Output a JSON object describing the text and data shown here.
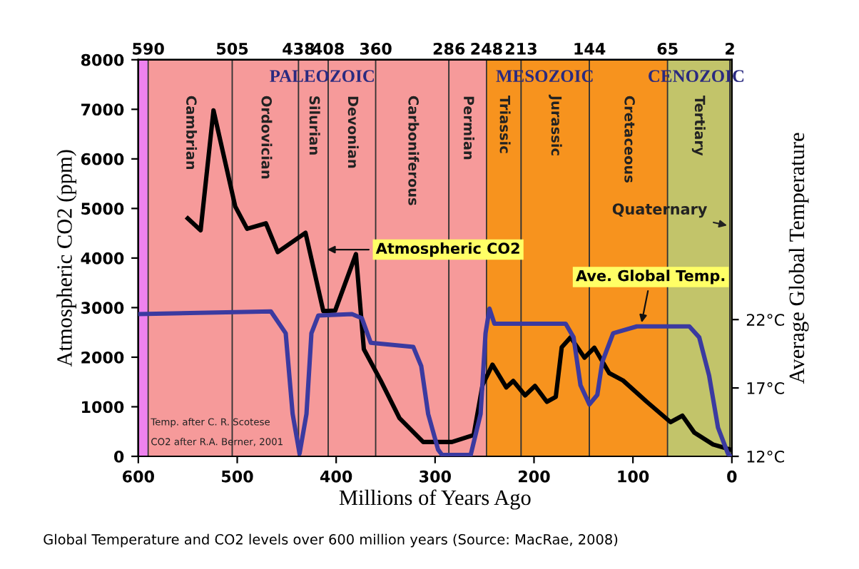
{
  "chart_data": {
    "type": "line",
    "xlabel": "Millions of Years Ago",
    "ylabel": "Atmospheric CO2 (ppm)",
    "y2label": "Average Global Temperature",
    "xlim": [
      600,
      0
    ],
    "xticks": [
      600,
      500,
      400,
      300,
      200,
      100,
      0
    ],
    "x2lim": [
      600,
      0
    ],
    "x2ticks": [
      590,
      505,
      438,
      408,
      360,
      286,
      248,
      213,
      144,
      65,
      2
    ],
    "ylim": [
      0,
      8000
    ],
    "yticks": [
      0,
      1000,
      2000,
      3000,
      4000,
      5000,
      6000,
      7000,
      8000
    ],
    "y2lim": [
      12,
      41
    ],
    "y2ticks": [
      {
        "value": 12,
        "label": "12°C"
      },
      {
        "value": 17,
        "label": "17°C"
      },
      {
        "value": 22,
        "label": "22°C"
      }
    ],
    "grid": false,
    "marker": "none",
    "line_style": "solid",
    "series": [
      {
        "color": "#000000",
        "x": [
          550,
          537,
          524,
          502,
          490,
          471,
          459,
          431,
          413,
          401,
          380,
          372,
          355,
          336,
          312,
          283,
          261,
          252,
          242,
          228,
          221,
          209,
          199,
          187,
          178,
          172,
          163,
          149,
          139,
          124,
          110,
          86,
          62,
          50,
          38,
          19,
          2
        ],
        "values": [
          4800,
          4560,
          6980,
          5040,
          4590,
          4700,
          4120,
          4510,
          2930,
          2940,
          4080,
          2160,
          1530,
          770,
          290,
          290,
          430,
          1440,
          1850,
          1390,
          1520,
          1230,
          1420,
          1100,
          1200,
          2200,
          2400,
          1990,
          2190,
          1680,
          1530,
          1100,
          690,
          820,
          480,
          240,
          140
        ]
      },
      {
        "color": "#3b3aa0",
        "axis": "y2",
        "x": [
          600,
          466,
          451,
          444,
          437,
          430,
          425,
          418,
          384,
          374,
          365,
          350,
          322,
          314,
          307,
          297,
          293,
          264,
          254,
          249,
          245,
          240,
          168,
          160,
          153,
          144,
          136,
          131,
          120,
          96,
          43,
          33,
          23,
          14,
          4,
          1
        ],
        "values": [
          22.4,
          22.6,
          21.0,
          15.1,
          12.2,
          15.1,
          21.0,
          22.3,
          22.4,
          22.1,
          20.3,
          20.2,
          20.0,
          18.6,
          15.1,
          12.5,
          12.1,
          12.1,
          15.1,
          21.0,
          22.8,
          21.7,
          21.7,
          20.7,
          17.2,
          15.8,
          16.5,
          18.9,
          21.0,
          21.5,
          21.5,
          20.7,
          17.9,
          14.1,
          12.2,
          12.0
        ]
      }
    ],
    "bands": [
      {
        "axis": "x",
        "from": 600,
        "to": 590,
        "label": null,
        "color": "#ee82ee"
      },
      {
        "axis": "x",
        "from": 590,
        "to": 505,
        "label": "Cambrian",
        "color": "#f69a9a"
      },
      {
        "axis": "x",
        "from": 505,
        "to": 438,
        "label": "Ordovician",
        "color": "#f69a9a"
      },
      {
        "axis": "x",
        "from": 438,
        "to": 408,
        "label": "Silurian",
        "color": "#f69a9a"
      },
      {
        "axis": "x",
        "from": 408,
        "to": 360,
        "label": "Devonian",
        "color": "#f69a9a"
      },
      {
        "axis": "x",
        "from": 360,
        "to": 286,
        "label": "Carboniferous",
        "color": "#f69a9a"
      },
      {
        "axis": "x",
        "from": 286,
        "to": 248,
        "label": "Permian",
        "color": "#f69a9a"
      },
      {
        "axis": "x",
        "from": 248,
        "to": 213,
        "label": "Triassic",
        "color": "#f7931e"
      },
      {
        "axis": "x",
        "from": 213,
        "to": 144,
        "label": "Jurassic",
        "color": "#f7931e"
      },
      {
        "axis": "x",
        "from": 144,
        "to": 65,
        "label": "Cretaceous",
        "color": "#f7931e"
      },
      {
        "axis": "x",
        "from": 65,
        "to": 2,
        "label": "Tertiary",
        "color": "#c2c46a"
      },
      {
        "axis": "x",
        "from": 2,
        "to": 0,
        "label": "Quaternary",
        "color": "#c2c46a"
      }
    ],
    "annotations": [
      "PALEOZOIC",
      "MESOZOIC",
      "CENOZOIC",
      {
        "text": "Atmospheric CO2",
        "x": 413,
        "y": 4170
      },
      {
        "text": "Ave. Global Temp.",
        "x": 92,
        "y": 2620
      },
      "Temp. after C. R. Scotese",
      "CO2 after R.A. Berner, 2001",
      "Global Temperature and CO2 levels over 600 million years (Source: MacRae, 2008)"
    ]
  }
}
